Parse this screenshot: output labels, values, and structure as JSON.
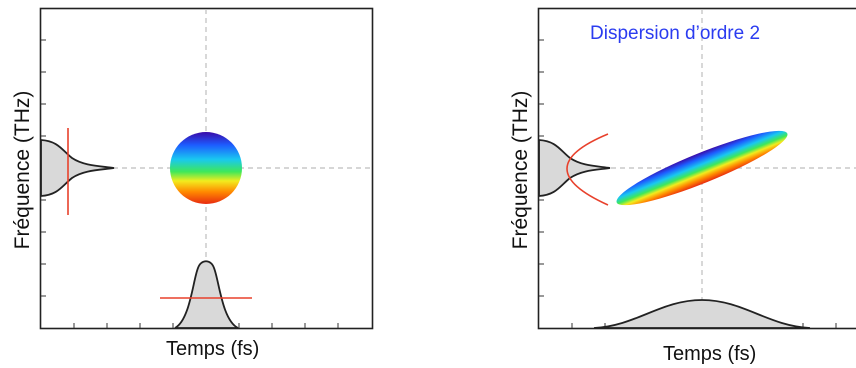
{
  "panels": [
    {
      "xlabel": "Temps (fs)",
      "ylabel": "Fréquence (THz)",
      "annotation": ""
    },
    {
      "xlabel": "Temps (fs)",
      "ylabel": "Fréquence (THz)",
      "annotation": "Dispersion d’ordre 2"
    }
  ],
  "colors": {
    "annotation": "#2b3cf0",
    "chirp_marker": "#e8412c",
    "profile_fill": "#d9d9d9",
    "guide": "#bdbdbd",
    "rainbow": [
      "#3a0aa8",
      "#1d5cff",
      "#19c8f0",
      "#3ee85a",
      "#f2ec1e",
      "#ff8a00",
      "#e82a10"
    ]
  }
}
